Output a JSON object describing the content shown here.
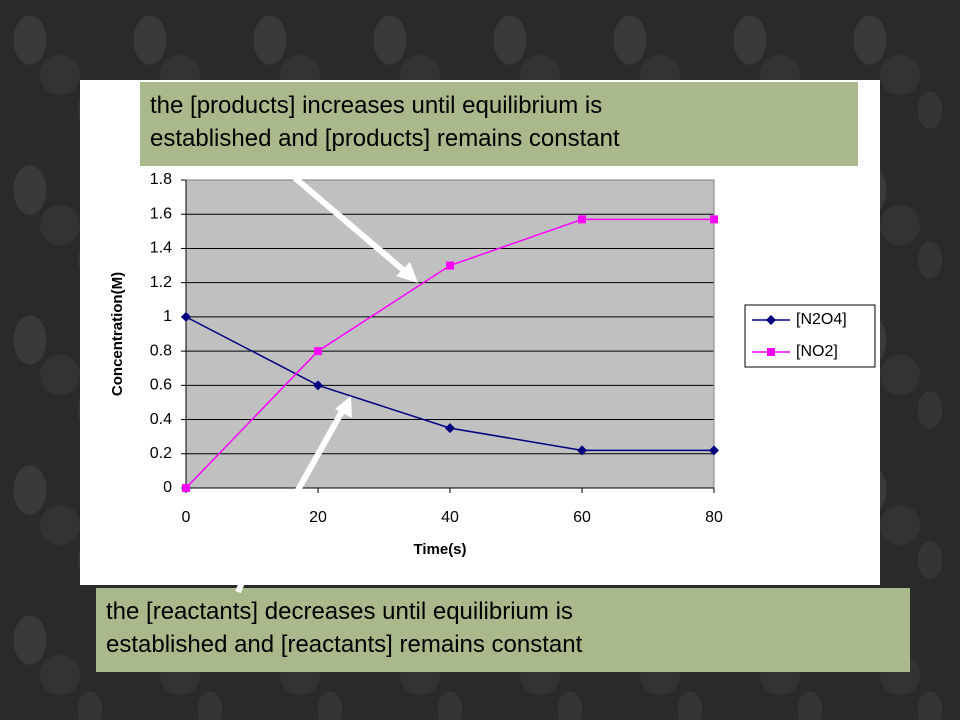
{
  "chart_data": {
    "type": "line",
    "xlabel": "Time(s)",
    "ylabel": "Concentration(M)",
    "x": [
      0,
      20,
      40,
      60,
      80
    ],
    "series": [
      {
        "name": "[N2O4]",
        "color": "#000080",
        "marker": "diamond",
        "values": [
          1,
          0.6,
          0.35,
          0.22,
          0.22
        ]
      },
      {
        "name": "[NO2]",
        "color": "#ff00ff",
        "marker": "square",
        "values": [
          0,
          0.8,
          1.3,
          1.57,
          1.57
        ]
      }
    ],
    "xlim": [
      0,
      80
    ],
    "xticks": [
      0,
      20,
      40,
      60,
      80
    ],
    "ylim": [
      0,
      1.8
    ],
    "yticks": [
      0,
      0.2,
      0.4,
      0.6,
      0.8,
      1,
      1.2,
      1.4,
      1.6,
      1.8
    ],
    "grid": true,
    "legend": "right",
    "annotations": [
      {
        "lines": [
          "the  [products] increases until equilibrium is",
          "established and [products] remains constant"
        ]
      },
      {
        "lines": [
          "the  [reactants] decreases until equilibrium is",
          "established and [reactants] remains constant"
        ]
      }
    ]
  }
}
